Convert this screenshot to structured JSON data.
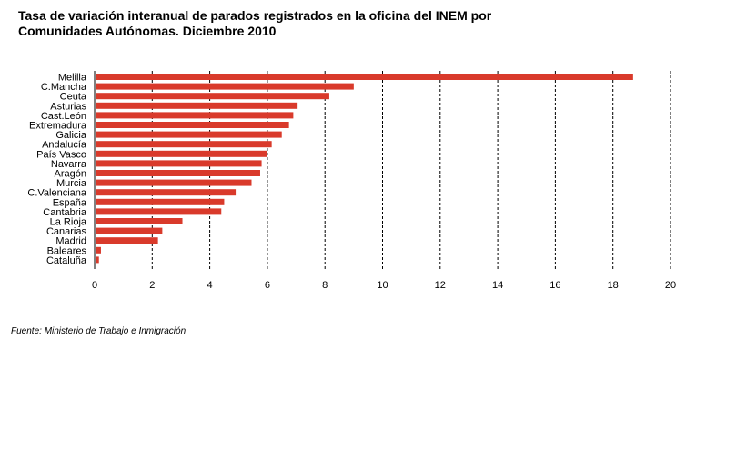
{
  "title_lines": [
    "Tasa de variación interanual de parados registrados en la oficina del INEM por",
    "Comunidades Autónomas. Diciembre 2010"
  ],
  "source": "Fuente: Ministerio de Trabajo e Inmigración",
  "colors": {
    "bar": "#d93a2b",
    "grid": "#000000"
  },
  "chart_data": {
    "type": "bar",
    "orientation": "horizontal",
    "title": "Tasa de variación interanual de parados registrados en la oficina del INEM por Comunidades Autónomas. Diciembre 2010",
    "categories": [
      "Melilla",
      "C.Mancha",
      "Ceuta",
      "Asturias",
      "Cast.León",
      "Extremadura",
      "Galicia",
      "Andalucía",
      "País Vasco",
      "Navarra",
      "Aragón",
      "Murcia",
      "C.Valenciana",
      "España",
      "Cantabria",
      "La Rioja",
      "Canarias",
      "Madrid",
      "Baleares",
      "Cataluña"
    ],
    "values": [
      18.7,
      9.0,
      8.15,
      7.05,
      6.9,
      6.75,
      6.5,
      6.15,
      6.0,
      5.8,
      5.75,
      5.45,
      4.9,
      4.5,
      4.4,
      3.05,
      2.35,
      2.2,
      0.22,
      0.15
    ],
    "xlim": [
      0,
      20
    ],
    "xticks": [
      "0",
      "2",
      "4",
      "6",
      "8",
      "10",
      "12",
      "14",
      "16",
      "18",
      "20"
    ],
    "grid": true,
    "xlabel": "",
    "ylabel": ""
  }
}
